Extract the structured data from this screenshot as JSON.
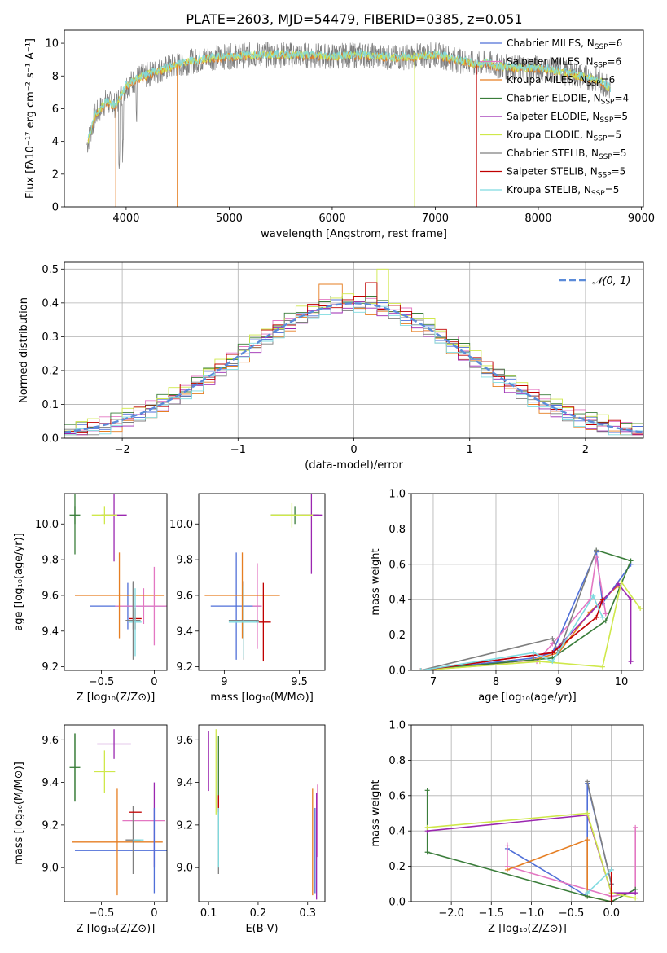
{
  "title": "PLATE=2603, MJD=54479, FIBERID=0385, z=0.051",
  "colors": {
    "Chabrier MILES": "#4f6fd8",
    "Salpeter MILES": "#e377c2",
    "Kroupa MILES": "#e67e22",
    "Chabrier ELODIE": "#3a7d3a",
    "Salpeter ELODIE": "#9b27b0",
    "Kroupa ELODIE": "#cfe84a",
    "Chabrier STELIB": "#7f7f7f",
    "Salpeter STELIB": "#c00000",
    "Kroupa STELIB": "#7fdbe0",
    "normal": "#5b8bd9",
    "model_line": "#5c8a5c"
  },
  "chart_data": [
    {
      "type": "line",
      "title": "PLATE=2603, MJD=54479, FIBERID=0385, z=0.051",
      "xlabel": "wavelength [Angstrom, rest frame]",
      "ylabel": "Flux [fλ10⁻¹⁷ erg cm⁻² s⁻¹ A⁻¹]",
      "xlim": [
        3400,
        9020
      ],
      "ylim": [
        0,
        10.8
      ],
      "xticks": [
        4000,
        5000,
        6000,
        7000,
        8000,
        9000
      ],
      "yticks": [
        0,
        2,
        4,
        6,
        8,
        10
      ],
      "grid": false,
      "legend_position": "right",
      "legend": [
        {
          "label": "Chabrier MILES, N",
          "sub": "SSP",
          "val": "=6"
        },
        {
          "label": "Salpeter MILES, N",
          "sub": "SSP",
          "val": "=6"
        },
        {
          "label": "Kroupa MILES, N",
          "sub": "SSP",
          "val": "=6"
        },
        {
          "label": "Chabrier ELODIE, N",
          "sub": "SSP",
          "val": "=4"
        },
        {
          "label": "Salpeter ELODIE, N",
          "sub": "SSP",
          "val": "=5"
        },
        {
          "label": "Kroupa ELODIE, N",
          "sub": "SSP",
          "val": "=5"
        },
        {
          "label": "Chabrier STELIB, N",
          "sub": "SSP",
          "val": "=5"
        },
        {
          "label": "Salpeter STELIB, N",
          "sub": "SSP",
          "val": "=5"
        },
        {
          "label": "Kroupa STELIB, N",
          "sub": "SSP",
          "val": "=5"
        }
      ],
      "spectrum_anchor_x": [
        3620,
        3700,
        3800,
        3900,
        4000,
        4100,
        4300,
        4500,
        4800,
        5000,
        5300,
        5600,
        6000,
        6300,
        6600,
        7000,
        7200,
        7400,
        7500,
        7600,
        7800,
        8000,
        8200,
        8400,
        8600,
        8700
      ],
      "spectrum_anchor_y": [
        3.8,
        5.6,
        6.4,
        6.2,
        7.4,
        7.8,
        8.3,
        8.7,
        9.1,
        9.2,
        9.3,
        9.3,
        9.2,
        9.3,
        9.1,
        9.3,
        9.0,
        8.7,
        8.8,
        8.6,
        8.5,
        8.5,
        8.3,
        8.0,
        7.7,
        7.2
      ],
      "model_drops": [
        {
          "series": "Kroupa MILES",
          "x": 3900,
          "xmax": 3920
        },
        {
          "series": "Kroupa MILES",
          "x": 4497,
          "xmax": 4510
        },
        {
          "series": "Kroupa ELODIE",
          "x": 6800,
          "xmax": 6812
        },
        {
          "series": "Salpeter STELIB",
          "x": 7400,
          "xmax": 7420
        }
      ]
    },
    {
      "type": "histogram",
      "xlabel": "(data-model)/error",
      "ylabel": "Normed distribution",
      "xlim": [
        -2.5,
        2.5
      ],
      "ylim": [
        0,
        0.52
      ],
      "xticks": [
        -2,
        -1,
        0,
        1,
        2
      ],
      "yticks": [
        0.0,
        0.1,
        0.2,
        0.3,
        0.4,
        0.5
      ],
      "grid": true,
      "legend": [
        "𝒩(0, 1)"
      ],
      "legend_position": "top-right",
      "bin_width": 0.1,
      "bin_start": -2.5,
      "series_offsets": [
        0.0,
        0.01,
        -0.015,
        0.012,
        -0.01,
        0.015,
        -0.008,
        0.006,
        -0.012
      ],
      "peaks": [
        {
          "x": 0.23,
          "value": 0.5
        },
        {
          "x": 0.15,
          "value": 0.46
        },
        {
          "x": -0.2,
          "value": 0.455
        }
      ]
    },
    {
      "type": "scatter",
      "xlabel": "Z [log₁₀(Z/Z⊙)]",
      "ylabel": "age  [log₁₀(age/yr)]",
      "xlim": [
        -0.85,
        0.12
      ],
      "ylim": [
        9.18,
        10.17
      ],
      "xticks": [
        -0.5,
        0.0
      ],
      "yticks": [
        9.2,
        9.4,
        9.6,
        9.8,
        10.0
      ],
      "points": [
        {
          "series": "Chabrier MILES",
          "x": -0.25,
          "y": 9.54,
          "xerr": 0.36,
          "yerr": 0.13
        },
        {
          "series": "Salpeter MILES",
          "x": -0.1,
          "y": 9.54,
          "xerr": 0.27,
          "yerr": 0.1
        },
        {
          "series": "Kroupa MILES",
          "x": -0.33,
          "y": 9.6,
          "xerr": 0.42,
          "yerr": 0.24
        },
        {
          "series": "Chabrier ELODIE",
          "x": -0.75,
          "y": 10.05,
          "xerr": 0.05,
          "yerr": 0.05
        },
        {
          "series": "Salpeter ELODIE",
          "x": -0.38,
          "y": 10.05,
          "xerr": 0.12,
          "yerr": 0.26
        },
        {
          "series": "Kroupa ELODIE",
          "x": -0.47,
          "y": 10.05,
          "xerr": 0.12,
          "yerr": 0.05
        },
        {
          "series": "Chabrier STELIB",
          "x": -0.2,
          "y": 9.46,
          "xerr": 0.07,
          "yerr": 0.22
        },
        {
          "series": "Salpeter STELIB",
          "x": -0.18,
          "y": 9.47,
          "xerr": 0.06,
          "yerr": 0.06
        },
        {
          "series": "Kroupa STELIB",
          "x": -0.18,
          "y": 9.45,
          "xerr": 0.06,
          "yerr": 0.19
        },
        {
          "series": "Salpeter MILES",
          "x": 0.0,
          "y": 9.54,
          "xerr": 0.0,
          "yerr": 0.22
        },
        {
          "series": "Chabrier STELIB",
          "x": -0.2,
          "y": 9.54,
          "xerr": 0.0,
          "yerr": 0.13
        },
        {
          "series": "Chabrier ELODIE",
          "x": -0.75,
          "y": 10.05,
          "xerr": 0.0,
          "yerr": 0.22
        }
      ]
    },
    {
      "type": "scatter",
      "xlabel": "mass [log₁₀(M/M⊙)]",
      "xlim": [
        8.83,
        9.67
      ],
      "ylim": [
        9.18,
        10.17
      ],
      "xticks": [
        9.0,
        9.5
      ],
      "yticks": [
        9.2,
        9.4,
        9.6,
        9.8,
        10.0
      ],
      "points": [
        {
          "series": "Chabrier MILES",
          "x": 9.08,
          "y": 9.54,
          "xerr": 0.17,
          "yerr": 0.3
        },
        {
          "series": "Salpeter MILES",
          "x": 9.22,
          "y": 9.54,
          "xerr": 0.03,
          "yerr": 0.24
        },
        {
          "series": "Kroupa MILES",
          "x": 9.12,
          "y": 9.6,
          "xerr": 0.25,
          "yerr": 0.24
        },
        {
          "series": "Chabrier ELODIE",
          "x": 9.47,
          "y": 10.05,
          "xerr": 0.16,
          "yerr": 0.05
        },
        {
          "series": "Salpeter ELODIE",
          "x": 9.58,
          "y": 10.05,
          "xerr": 0.07,
          "yerr": 0.33
        },
        {
          "series": "Kroupa ELODIE",
          "x": 9.45,
          "y": 10.05,
          "xerr": 0.14,
          "yerr": 0.07
        },
        {
          "series": "Chabrier STELIB",
          "x": 9.13,
          "y": 9.46,
          "xerr": 0.1,
          "yerr": 0.22
        },
        {
          "series": "Salpeter STELIB",
          "x": 9.26,
          "y": 9.45,
          "xerr": 0.05,
          "yerr": 0.22
        },
        {
          "series": "Kroupa STELIB",
          "x": 9.13,
          "y": 9.45,
          "xerr": 0.1,
          "yerr": 0.2
        }
      ]
    },
    {
      "type": "line",
      "xlabel": "age  [log₁₀(age/yr)]",
      "ylabel": "mass weight",
      "xlim": [
        6.65,
        10.35
      ],
      "ylim": [
        0,
        1.0
      ],
      "xticks": [
        7,
        8,
        9,
        10
      ],
      "yticks": [
        0.0,
        0.2,
        0.4,
        0.6,
        0.8,
        1.0
      ],
      "grid": true,
      "series": [
        {
          "name": "Chabrier MILES",
          "x": [
            6.8,
            8.6,
            8.9,
            9.6,
            9.7,
            10.15
          ],
          "y": [
            0.0,
            0.07,
            0.1,
            0.67,
            0.38,
            0.6
          ]
        },
        {
          "name": "Salpeter MILES",
          "x": [
            6.8,
            8.65,
            8.9,
            9.5,
            9.6,
            9.75
          ],
          "y": [
            0.0,
            0.05,
            0.15,
            0.4,
            0.64,
            0.32
          ]
        },
        {
          "name": "Kroupa MILES",
          "x": [
            6.8,
            8.6,
            9.0,
            9.5,
            9.7,
            9.95
          ],
          "y": [
            0.0,
            0.06,
            0.1,
            0.33,
            0.4,
            0.48
          ]
        },
        {
          "name": "Chabrier ELODIE",
          "x": [
            6.8,
            8.9,
            9.75,
            10.15,
            9.6
          ],
          "y": [
            0.0,
            0.07,
            0.28,
            0.62,
            0.68
          ]
        },
        {
          "name": "Salpeter ELODIE",
          "x": [
            6.8,
            8.9,
            9.95,
            10.15,
            10.15
          ],
          "y": [
            0.0,
            0.1,
            0.49,
            0.4,
            0.05
          ]
        },
        {
          "name": "Kroupa ELODIE",
          "x": [
            6.8,
            8.7,
            9.7,
            10.0,
            10.3
          ],
          "y": [
            0.0,
            0.05,
            0.02,
            0.5,
            0.35
          ]
        },
        {
          "name": "Chabrier STELIB",
          "x": [
            6.8,
            8.9,
            9.0,
            9.6
          ],
          "y": [
            0.0,
            0.18,
            0.1,
            0.68
          ]
        },
        {
          "name": "Salpeter STELIB",
          "x": [
            6.8,
            8.9,
            9.6,
            9.7
          ],
          "y": [
            0.0,
            0.1,
            0.3,
            0.4
          ]
        },
        {
          "name": "Kroupa STELIB",
          "x": [
            6.8,
            8.6,
            8.9,
            9.55,
            9.7
          ],
          "y": [
            0.0,
            0.1,
            0.05,
            0.42,
            0.3
          ]
        }
      ]
    },
    {
      "type": "scatter",
      "xlabel": "Z [log₁₀(Z/Z⊙)]",
      "ylabel": "mass [log₁₀(M/M⊙)]",
      "xlim": [
        -0.85,
        0.12
      ],
      "ylim": [
        8.84,
        9.67
      ],
      "xticks": [
        -0.5,
        0.0
      ],
      "yticks": [
        9.0,
        9.2,
        9.4,
        9.6
      ],
      "points": [
        {
          "series": "Chabrier MILES",
          "x": -0.3,
          "y": 9.08,
          "xerr": 0.45,
          "yerr": 0.0
        },
        {
          "series": "Salpeter MILES",
          "x": -0.1,
          "y": 9.22,
          "xerr": 0.2,
          "yerr": 0.0
        },
        {
          "series": "Kroupa MILES",
          "x": -0.35,
          "y": 9.12,
          "xerr": 0.43,
          "yerr": 0.25
        },
        {
          "series": "Chabrier ELODIE",
          "x": -0.75,
          "y": 9.47,
          "xerr": 0.05,
          "yerr": 0.16
        },
        {
          "series": "Salpeter ELODIE",
          "x": -0.38,
          "y": 9.58,
          "xerr": 0.16,
          "yerr": 0.07
        },
        {
          "series": "Kroupa ELODIE",
          "x": -0.47,
          "y": 9.45,
          "xerr": 0.1,
          "yerr": 0.1
        },
        {
          "series": "Chabrier STELIB",
          "x": -0.2,
          "y": 9.13,
          "xerr": 0.07,
          "yerr": 0.16
        },
        {
          "series": "Salpeter STELIB",
          "x": -0.18,
          "y": 9.26,
          "xerr": 0.06,
          "yerr": 0.0
        },
        {
          "series": "Kroupa STELIB",
          "x": -0.15,
          "y": 9.13,
          "xerr": 0.05,
          "yerr": 0.0
        },
        {
          "series": "Salpeter ELODIE",
          "x": 0.0,
          "y": 9.2,
          "xerr": 0.0,
          "yerr": 0.2
        },
        {
          "series": "Chabrier MILES",
          "x": 0.0,
          "y": 9.08,
          "xerr": 0.0,
          "yerr": 0.2
        },
        {
          "series": "Chabrier ELODIE",
          "x": -0.75,
          "y": 9.47,
          "xerr": 0.0,
          "yerr": 0.16
        }
      ]
    },
    {
      "type": "scatter",
      "xlabel": "E(B-V)",
      "xlim": [
        0.08,
        0.335
      ],
      "ylim": [
        8.84,
        9.67
      ],
      "xticks": [
        0.1,
        0.2,
        0.3
      ],
      "yticks": [
        9.0,
        9.2,
        9.4,
        9.6
      ],
      "points": [
        {
          "series": "Salpeter ELODIE",
          "x": 0.1,
          "y": 9.5,
          "xerr": 0.0,
          "yerr": 0.14
        },
        {
          "series": "Kroupa ELODIE",
          "x": 0.115,
          "y": 9.45,
          "xerr": 0.0,
          "yerr": 0.2
        },
        {
          "series": "Chabrier ELODIE",
          "x": 0.12,
          "y": 9.45,
          "xerr": 0.0,
          "yerr": 0.17
        },
        {
          "series": "Chabrier STELIB",
          "x": 0.12,
          "y": 9.15,
          "xerr": 0.0,
          "yerr": 0.18
        },
        {
          "series": "Salpeter STELIB",
          "x": 0.12,
          "y": 9.3,
          "xerr": 0.0,
          "yerr": 0.04
        },
        {
          "series": "Kroupa STELIB",
          "x": 0.12,
          "y": 9.14,
          "xerr": 0.0,
          "yerr": 0.14
        },
        {
          "series": "Kroupa MILES",
          "x": 0.31,
          "y": 9.12,
          "xerr": 0.0,
          "yerr": 0.25
        },
        {
          "series": "Chabrier MILES",
          "x": 0.315,
          "y": 9.08,
          "xerr": 0.0,
          "yerr": 0.2
        },
        {
          "series": "Salpeter MILES",
          "x": 0.32,
          "y": 9.22,
          "xerr": 0.0,
          "yerr": 0.17
        },
        {
          "series": "Salpeter ELODIE",
          "x": 0.318,
          "y": 9.1,
          "xerr": 0.0,
          "yerr": 0.25
        }
      ]
    },
    {
      "type": "line",
      "xlabel": "Z [log₁₀(Z/Z⊙)]",
      "ylabel": "mass weight",
      "xlim": [
        -2.5,
        0.4
      ],
      "ylim": [
        0,
        1.0
      ],
      "xticks": [
        -2.0,
        -1.5,
        -1.0,
        -0.5,
        0.0
      ],
      "yticks": [
        0.0,
        0.2,
        0.4,
        0.6,
        0.8,
        1.0
      ],
      "grid": true,
      "series": [
        {
          "name": "Chabrier MILES",
          "x": [
            -1.3,
            -0.3,
            -0.3,
            0.0
          ],
          "y": [
            0.3,
            0.03,
            0.67,
            0.1
          ]
        },
        {
          "name": "Salpeter MILES",
          "x": [
            -1.3,
            -1.3,
            0.0,
            0.3,
            0.3
          ],
          "y": [
            0.32,
            0.2,
            0.03,
            0.05,
            0.42
          ]
        },
        {
          "name": "Kroupa MILES",
          "x": [
            -1.3,
            -0.3,
            -0.3,
            0.0
          ],
          "y": [
            0.18,
            0.35,
            0.03,
            0.0
          ]
        },
        {
          "name": "Chabrier ELODIE",
          "x": [
            -2.3,
            -2.3,
            -0.3,
            0.0,
            0.3
          ],
          "y": [
            0.63,
            0.28,
            0.03,
            0.0,
            0.07
          ]
        },
        {
          "name": "Salpeter ELODIE",
          "x": [
            -2.3,
            -0.3,
            0.0,
            0.3
          ],
          "y": [
            0.4,
            0.49,
            0.05,
            0.05
          ]
        },
        {
          "name": "Kroupa ELODIE",
          "x": [
            -2.3,
            -0.3,
            0.0,
            0.3
          ],
          "y": [
            0.42,
            0.5,
            0.05,
            0.02
          ]
        },
        {
          "name": "Chabrier STELIB",
          "x": [
            -0.3,
            0.0,
            0.0
          ],
          "y": [
            0.68,
            0.1,
            0.0
          ]
        },
        {
          "name": "Salpeter STELIB",
          "x": [
            0.0,
            0.0
          ],
          "y": [
            0.18,
            0.0
          ]
        },
        {
          "name": "Kroupa STELIB",
          "x": [
            -0.3,
            0.0
          ],
          "y": [
            0.05,
            0.18
          ]
        }
      ]
    }
  ]
}
